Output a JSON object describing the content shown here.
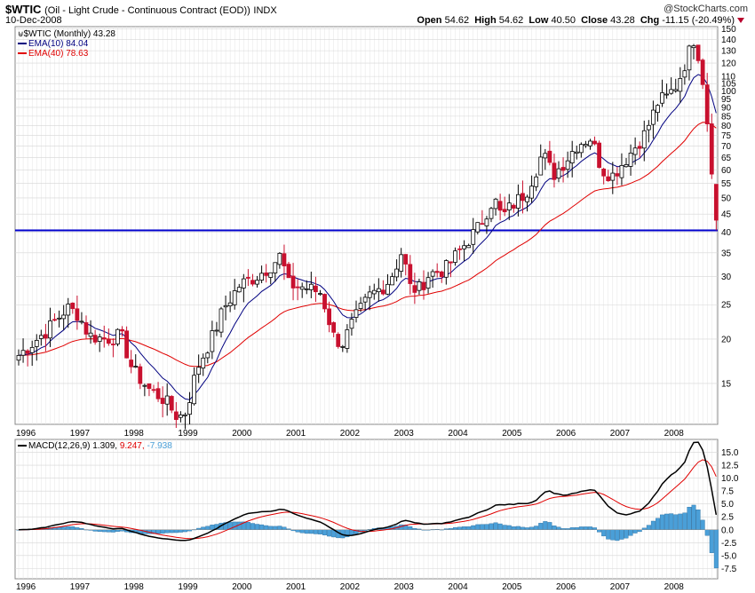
{
  "header": {
    "symbol": "$WTIC",
    "name": "(Oil - Light Crude - Continuous Contract (EOD))",
    "exchange": "INDX",
    "date": "10-Dec-2008",
    "brand": "@StockCharts.com",
    "open_label": "Open",
    "open": "54.62",
    "high_label": "High",
    "high": "54.62",
    "low_label": "Low",
    "low": "40.50",
    "close_label": "Close",
    "close": "43.28",
    "chg_label": "Chg",
    "chg": "-11.15 (-20.49%)"
  },
  "price_legend": {
    "main": "$WTIC (Monthly) 43.28",
    "ema10": "EMA(10) 84.04",
    "ema40": "EMA(40) 78.63"
  },
  "macd_legend": {
    "label": "MACD(12,26,9)",
    "macd": "1.309,",
    "signal": "9.247,",
    "hist": "-7.938"
  },
  "colors": {
    "up": "#ffffff",
    "down": "#c8102e",
    "ema10": "#000080",
    "ema40": "#e00000",
    "support": "#0000cc",
    "macd": "#000000",
    "signal": "#e00000",
    "hist": "#4a9fd8"
  },
  "chart_data": [
    {
      "type": "candlestick",
      "title": "$WTIC (Monthly) 43.28",
      "y_scale": "log",
      "ylim": [
        11.5,
        152
      ],
      "y_ticks": [
        15,
        20,
        25,
        30,
        35,
        40,
        45,
        50,
        55,
        60,
        65,
        70,
        75,
        80,
        85,
        90,
        95,
        100,
        105,
        110,
        120,
        130,
        140,
        150
      ],
      "x_ticks": [
        "1996",
        "1997",
        "1998",
        "1999",
        "2000",
        "2001",
        "2002",
        "2003",
        "2004",
        "2005",
        "2006",
        "2007",
        "2008"
      ],
      "support_level": 40.5,
      "anchors": [
        [
          1996.0,
          18.0
        ],
        [
          1996.5,
          21.0
        ],
        [
          1996.9,
          24.5
        ],
        [
          1997.1,
          23.5
        ],
        [
          1997.3,
          20.5
        ],
        [
          1997.6,
          20.0
        ],
        [
          1997.9,
          20.5
        ],
        [
          1998.1,
          16.5
        ],
        [
          1998.4,
          14.5
        ],
        [
          1998.7,
          13.5
        ],
        [
          1998.95,
          12.0
        ],
        [
          1999.1,
          12.5
        ],
        [
          1999.3,
          16.5
        ],
        [
          1999.6,
          20.5
        ],
        [
          1999.8,
          24.5
        ],
        [
          2000.1,
          28.5
        ],
        [
          2000.4,
          30.0
        ],
        [
          2000.7,
          32.5
        ],
        [
          2000.85,
          34.5
        ],
        [
          2001.0,
          28.5
        ],
        [
          2001.3,
          28.0
        ],
        [
          2001.6,
          27.0
        ],
        [
          2001.85,
          20.0
        ],
        [
          2002.0,
          19.5
        ],
        [
          2002.2,
          22.5
        ],
        [
          2002.5,
          26.5
        ],
        [
          2002.8,
          28.5
        ],
        [
          2002.95,
          31.0
        ],
        [
          2003.1,
          35.5
        ],
        [
          2003.25,
          28.0
        ],
        [
          2003.4,
          27.5
        ],
        [
          2003.6,
          30.5
        ],
        [
          2003.9,
          31.5
        ],
        [
          2004.2,
          36.0
        ],
        [
          2004.5,
          41.0
        ],
        [
          2004.8,
          50.0
        ],
        [
          2004.95,
          44.0
        ],
        [
          2005.1,
          47.0
        ],
        [
          2005.4,
          52.0
        ],
        [
          2005.6,
          61.0
        ],
        [
          2005.7,
          67.0
        ],
        [
          2005.9,
          58.0
        ],
        [
          2006.1,
          63.0
        ],
        [
          2006.35,
          71.0
        ],
        [
          2006.6,
          74.0
        ],
        [
          2006.8,
          60.0
        ],
        [
          2007.0,
          58.0
        ],
        [
          2007.3,
          66.0
        ],
        [
          2007.6,
          76.0
        ],
        [
          2007.85,
          94.0
        ],
        [
          2008.0,
          96.0
        ],
        [
          2008.2,
          105.0
        ],
        [
          2008.4,
          127.0
        ],
        [
          2008.5,
          140.0
        ],
        [
          2008.6,
          125.0
        ],
        [
          2008.7,
          100.0
        ],
        [
          2008.8,
          68.0
        ],
        [
          2008.87,
          54.6
        ],
        [
          2008.94,
          43.28
        ]
      ],
      "ema10_last": 84.04,
      "ema40_last": 78.63
    },
    {
      "type": "line+histogram",
      "title": "MACD(12,26,9)",
      "ylim": [
        -9.5,
        17.5
      ],
      "y_ticks": [
        -7.5,
        -5.0,
        -2.5,
        0.0,
        2.5,
        5.0,
        7.5,
        10.0,
        12.5,
        15.0
      ],
      "x_ticks": [
        "1996",
        "1997",
        "1998",
        "1999",
        "2000",
        "2001",
        "2002",
        "2003",
        "2004",
        "2005",
        "2006",
        "2007",
        "2008"
      ],
      "macd_last": 1.309,
      "signal_last": 9.247,
      "hist_last": -7.938
    }
  ]
}
